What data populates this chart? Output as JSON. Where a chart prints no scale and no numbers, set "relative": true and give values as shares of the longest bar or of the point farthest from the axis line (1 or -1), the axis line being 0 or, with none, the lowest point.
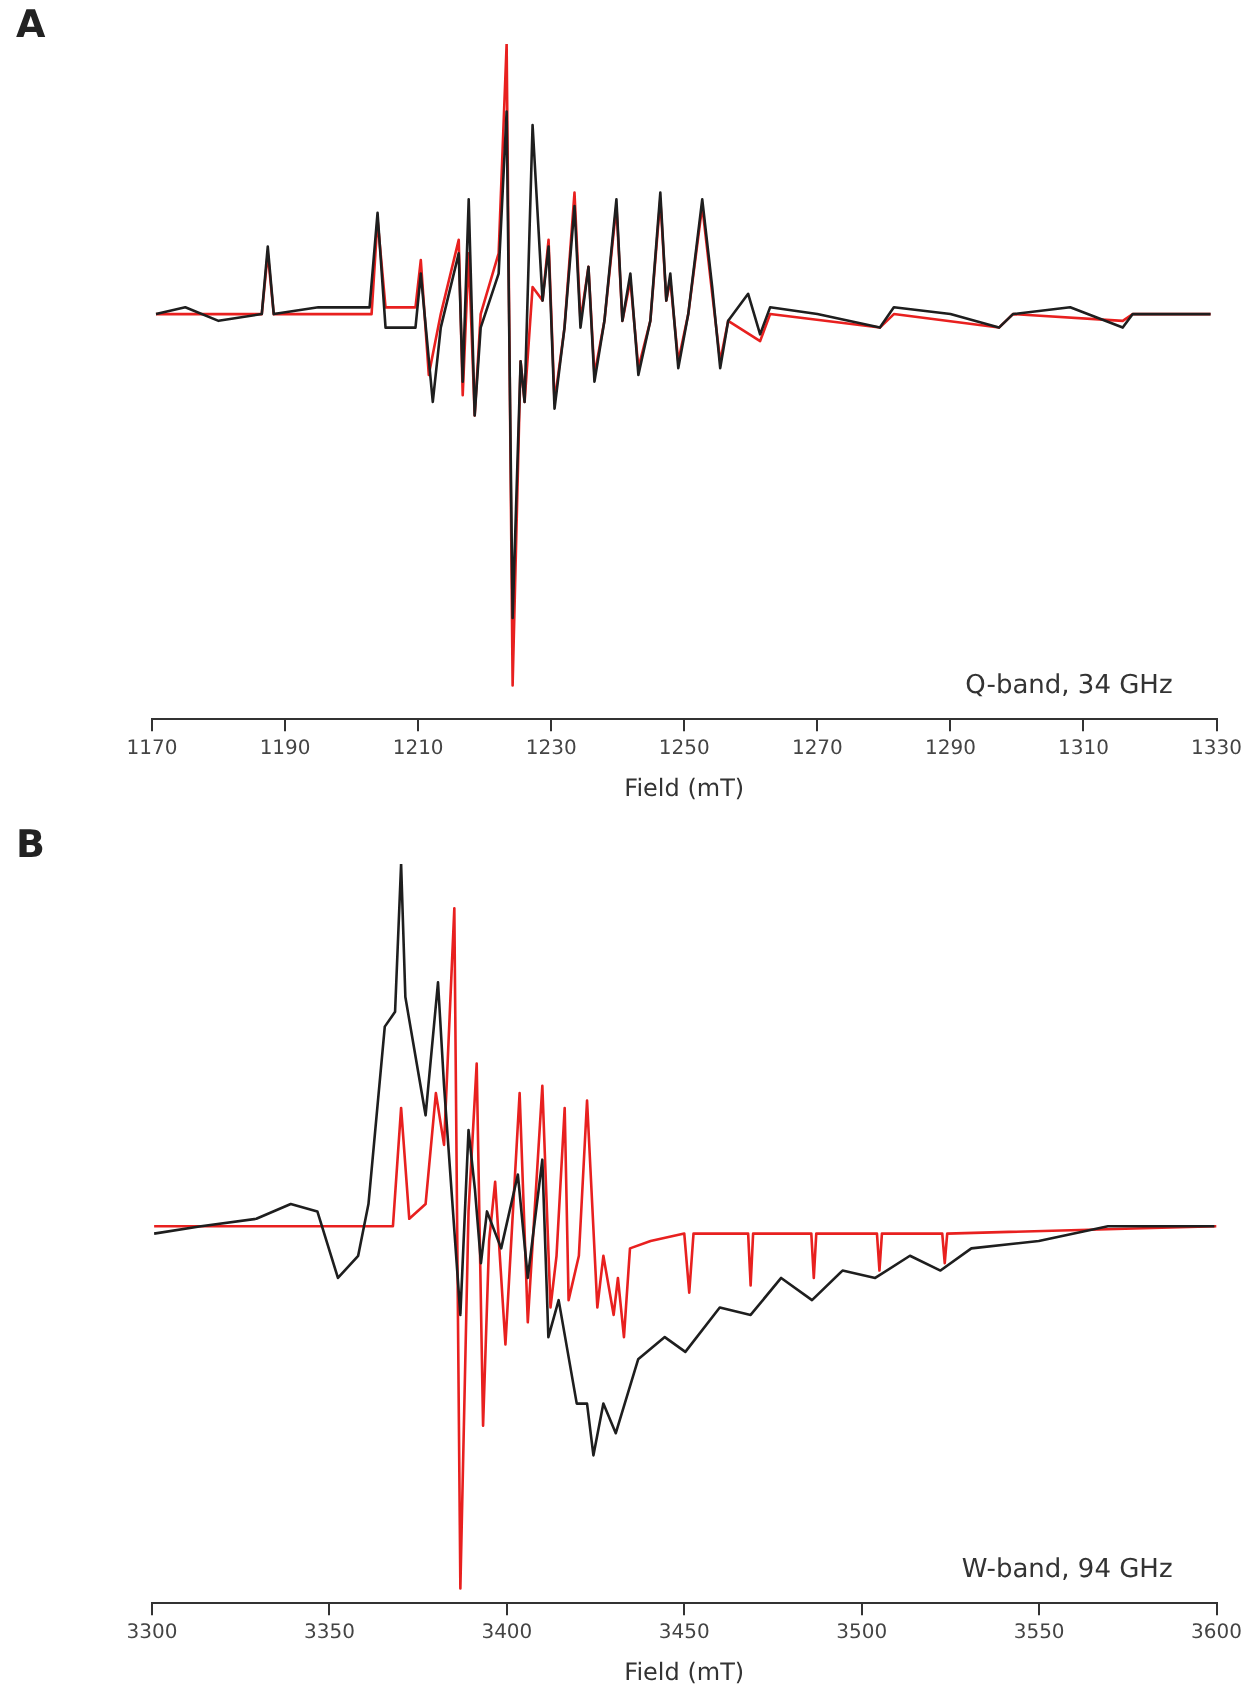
{
  "chart_data": [
    {
      "type": "line",
      "title": "A",
      "xlabel": "Field (mT)",
      "relative": true,
      "legend": false,
      "grid": false,
      "marker": "none",
      "line_style": "solid",
      "annotations": [
        "Q-band, 34 GHz"
      ],
      "xlim": [
        1170,
        1330
      ],
      "xticks": [
        1170,
        1190,
        1210,
        1230,
        1250,
        1270,
        1290,
        1310,
        1330
      ],
      "series": [
        {
          "color": "#1e1e1e",
          "x": [
            1170.6,
            1175,
            1180,
            1186.5,
            1187.4,
            1188.3,
            1195,
            1202.7,
            1203.9,
            1205.1,
            1209.6,
            1210.4,
            1212.2,
            1213.4,
            1216.1,
            1216.7,
            1217.6,
            1218.5,
            1219.4,
            1222.1,
            1223.3,
            1224.2,
            1225.4,
            1226.0,
            1227.2,
            1228.7,
            1229.6,
            1230.5,
            1232.0,
            1233.5,
            1234.4,
            1235.6,
            1236.5,
            1238.0,
            1239.8,
            1240.7,
            1241.9,
            1243.1,
            1244.9,
            1246.4,
            1247.3,
            1247.9,
            1249.1,
            1250.6,
            1252.7,
            1254.2,
            1255.4,
            1256.6,
            1259.6,
            1261.4,
            1262.9,
            1270,
            1279.4,
            1281.5,
            1290,
            1297.3,
            1299.4,
            1308,
            1315.9,
            1317.4,
            1329.1
          ],
          "values": [
            0.6,
            0.61,
            0.59,
            0.6,
            0.7,
            0.6,
            0.61,
            0.61,
            0.75,
            0.58,
            0.58,
            0.66,
            0.47,
            0.58,
            0.69,
            0.5,
            0.77,
            0.45,
            0.58,
            0.66,
            0.9,
            0.15,
            0.53,
            0.47,
            0.88,
            0.62,
            0.7,
            0.46,
            0.58,
            0.76,
            0.58,
            0.67,
            0.5,
            0.59,
            0.77,
            0.59,
            0.66,
            0.51,
            0.59,
            0.78,
            0.62,
            0.66,
            0.52,
            0.6,
            0.77,
            0.64,
            0.52,
            0.59,
            0.63,
            0.57,
            0.61,
            0.6,
            0.58,
            0.61,
            0.6,
            0.58,
            0.6,
            0.61,
            0.58,
            0.6,
            0.6
          ]
        },
        {
          "color": "#e8201f",
          "x": [
            1170.6,
            1186.5,
            1187.4,
            1188.3,
            1203.0,
            1203.9,
            1205.1,
            1209.6,
            1210.4,
            1211.6,
            1213.4,
            1216.1,
            1216.7,
            1217.6,
            1218.5,
            1219.4,
            1222.1,
            1223.3,
            1224.2,
            1225.4,
            1226.0,
            1227.2,
            1228.7,
            1229.6,
            1230.5,
            1232.0,
            1233.5,
            1234.4,
            1235.6,
            1236.5,
            1238.0,
            1239.8,
            1240.7,
            1241.9,
            1243.1,
            1244.9,
            1246.4,
            1247.3,
            1247.9,
            1249.1,
            1250.6,
            1252.7,
            1254.2,
            1255.4,
            1256.6,
            1261.4,
            1262.9,
            1279.4,
            1281.5,
            1297.3,
            1299.4,
            1315.9,
            1317.4,
            1329.1
          ],
          "values": [
            0.6,
            0.6,
            0.69,
            0.6,
            0.6,
            0.74,
            0.61,
            0.61,
            0.68,
            0.51,
            0.6,
            0.71,
            0.48,
            0.69,
            0.45,
            0.6,
            0.69,
            1.0,
            0.05,
            0.53,
            0.47,
            0.64,
            0.62,
            0.71,
            0.47,
            0.58,
            0.78,
            0.59,
            0.67,
            0.51,
            0.59,
            0.76,
            0.59,
            0.65,
            0.52,
            0.59,
            0.77,
            0.62,
            0.65,
            0.53,
            0.6,
            0.76,
            0.63,
            0.53,
            0.59,
            0.56,
            0.6,
            0.58,
            0.6,
            0.58,
            0.6,
            0.59,
            0.6,
            0.6
          ]
        }
      ]
    },
    {
      "type": "line",
      "title": "B",
      "xlabel": "Field (mT)",
      "relative": true,
      "legend": false,
      "grid": false,
      "marker": "none",
      "line_style": "solid",
      "annotations": [
        "W-band, 94 GHz"
      ],
      "xlim": [
        3300,
        3600
      ],
      "xticks": [
        3300,
        3350,
        3400,
        3450,
        3500,
        3550,
        3600
      ],
      "series": [
        {
          "color": "#1e1e1e",
          "x": [
            3300.6,
            3313.8,
            3329.4,
            3339.1,
            3346.6,
            3352.4,
            3358.1,
            3361.0,
            3365.6,
            3368.5,
            3370.2,
            3371.4,
            3377.1,
            3380.6,
            3382.3,
            3386.9,
            3389.2,
            3391.0,
            3392.7,
            3394.4,
            3398.4,
            3403.1,
            3405.9,
            3410.0,
            3411.7,
            3414.6,
            3419.7,
            3422.6,
            3424.4,
            3427.2,
            3430.7,
            3437.0,
            3444.5,
            3450.3,
            3460.0,
            3468.7,
            3477.3,
            3486.0,
            3494.6,
            3503.8,
            3513.6,
            3522.2,
            3530.9,
            3549.9,
            3569.4,
            3595.9,
            3599.4
          ],
          "values": [
            0.5,
            0.51,
            0.52,
            0.54,
            0.53,
            0.44,
            0.47,
            0.54,
            0.78,
            0.8,
            1.0,
            0.82,
            0.66,
            0.84,
            0.7,
            0.39,
            0.64,
            0.56,
            0.46,
            0.53,
            0.48,
            0.58,
            0.44,
            0.6,
            0.36,
            0.41,
            0.27,
            0.27,
            0.2,
            0.27,
            0.23,
            0.33,
            0.36,
            0.34,
            0.4,
            0.39,
            0.44,
            0.41,
            0.45,
            0.44,
            0.47,
            0.45,
            0.48,
            0.49,
            0.51,
            0.51,
            0.51
          ]
        },
        {
          "color": "#e8201f",
          "x": [
            3300.6,
            3367.9,
            3370.2,
            3372.5,
            3377.1,
            3380.0,
            3382.3,
            3385.2,
            3386.9,
            3389.2,
            3391.5,
            3393.3,
            3395.0,
            3396.7,
            3399.6,
            3403.6,
            3405.9,
            3410.0,
            3412.3,
            3414.0,
            3416.3,
            3417.4,
            3420.3,
            3422.6,
            3425.5,
            3427.2,
            3430.1,
            3431.3,
            3433.0,
            3434.7,
            3440.5,
            3450.0,
            3451.4,
            3452.6,
            3468.0,
            3468.7,
            3469.4,
            3485.8,
            3486.5,
            3487.2,
            3504.3,
            3505.0,
            3505.7,
            3522.7,
            3523.4,
            3524.1,
            3600
          ],
          "values": [
            0.51,
            0.51,
            0.67,
            0.52,
            0.54,
            0.69,
            0.62,
            0.94,
            0.02,
            0.53,
            0.73,
            0.24,
            0.49,
            0.57,
            0.35,
            0.69,
            0.38,
            0.7,
            0.4,
            0.47,
            0.67,
            0.41,
            0.47,
            0.68,
            0.4,
            0.47,
            0.39,
            0.44,
            0.36,
            0.48,
            0.49,
            0.5,
            0.42,
            0.5,
            0.5,
            0.43,
            0.5,
            0.5,
            0.44,
            0.5,
            0.5,
            0.45,
            0.5,
            0.5,
            0.46,
            0.5,
            0.51
          ]
        }
      ]
    }
  ]
}
